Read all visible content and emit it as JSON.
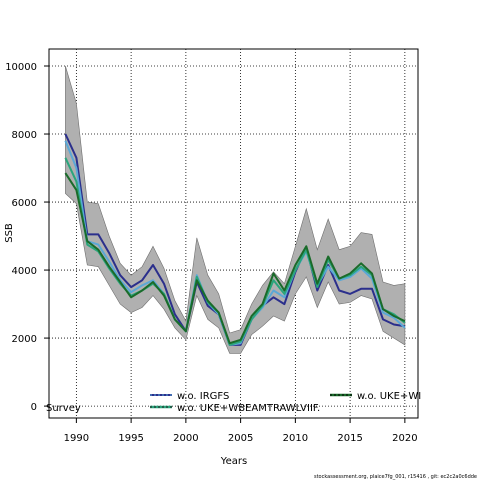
{
  "chart_data": {
    "type": "line",
    "title": "",
    "xlabel": "Years",
    "ylabel": "SSB",
    "xlim": [
      1987.5,
      2021.2
    ],
    "ylim": [
      -350,
      10500
    ],
    "xticks": [
      1990,
      1995,
      2000,
      2005,
      2010,
      2015,
      2020
    ],
    "yticks": [
      0,
      2000,
      4000,
      6000,
      8000,
      10000
    ],
    "grid": true,
    "grid_style": "dotted",
    "x": [
      1989,
      1990,
      1991,
      1992,
      1993,
      1994,
      1995,
      1996,
      1997,
      1998,
      1999,
      2000,
      2001,
      2002,
      2003,
      2004,
      2005,
      2006,
      2007,
      2008,
      2009,
      2010,
      2011,
      2012,
      2013,
      2014,
      2015,
      2016,
      2017,
      2018,
      2019,
      2020
    ],
    "band": {
      "color": "#b0b0b0",
      "upper": [
        10000,
        8900,
        6000,
        5950,
        5000,
        4200,
        3850,
        4100,
        4700,
        4050,
        3100,
        2500,
        4950,
        3850,
        3300,
        2150,
        2250,
        3000,
        3550,
        3950,
        3600,
        4700,
        5800,
        4600,
        5500,
        4600,
        4700,
        5100,
        5050,
        3650,
        3550,
        3600
      ],
      "lower": [
        6250,
        5950,
        4150,
        4100,
        3550,
        3000,
        2750,
        2900,
        3250,
        2850,
        2300,
        1950,
        3250,
        2550,
        2300,
        1550,
        1550,
        2100,
        2350,
        2650,
        2500,
        3300,
        3800,
        2900,
        3650,
        3000,
        3050,
        3250,
        3150,
        2200,
        2000,
        1800
      ]
    },
    "series": [
      {
        "color": "#2b2f8c",
        "values": [
          8000,
          7300,
          5050,
          5050,
          4500,
          3850,
          3500,
          3700,
          4150,
          3600,
          2700,
          2200,
          3650,
          2950,
          2700,
          1800,
          1800,
          2550,
          2950,
          3200,
          3000,
          3950,
          4650,
          3400,
          4150,
          3400,
          3300,
          3450,
          3450,
          2550,
          2400,
          2350
        ]
      },
      {
        "color": "#5ba8d6",
        "values": [
          7800,
          7000,
          4850,
          4750,
          4250,
          3700,
          3350,
          3550,
          3700,
          3300,
          2550,
          2200,
          3850,
          3050,
          2700,
          1800,
          1850,
          2550,
          2900,
          3400,
          3200,
          4000,
          4550,
          3550,
          4100,
          3700,
          3800,
          4050,
          3750,
          2750,
          2600,
          2300
        ]
      },
      {
        "color": "#2aa57c",
        "values": [
          7300,
          6600,
          4750,
          4550,
          4050,
          3600,
          3250,
          3400,
          3600,
          3300,
          2550,
          2200,
          3800,
          3050,
          2750,
          1800,
          1900,
          2550,
          2950,
          3700,
          3300,
          4000,
          4600,
          3500,
          4300,
          3750,
          3850,
          4100,
          3850,
          2850,
          2700,
          2450
        ]
      },
      {
        "color": "#1a6b2a",
        "values": [
          6850,
          6350,
          4850,
          4600,
          4100,
          3650,
          3200,
          3400,
          3650,
          3250,
          2550,
          2200,
          3700,
          3100,
          2750,
          1850,
          1950,
          2650,
          3000,
          3900,
          3400,
          4150,
          4700,
          3600,
          4400,
          3750,
          3900,
          4200,
          3900,
          2850,
          2650,
          2500
        ]
      }
    ],
    "legend": {
      "placement": "bottom",
      "entries": [
        {
          "label": "w.o. IRGFS",
          "color": "#2b2f8c"
        },
        {
          "label": "w.o. UKE+WBEAMTRAWLVIIF.",
          "color": "#2aa57c"
        },
        {
          "label": "w.o. UKE+WI",
          "color": "#1a6b2a"
        }
      ],
      "clipped_left_text": "Survey"
    },
    "footnote": "stockassessment.org, plaice7fg_001, r15416 , git: ec2c2a0c6dde"
  }
}
